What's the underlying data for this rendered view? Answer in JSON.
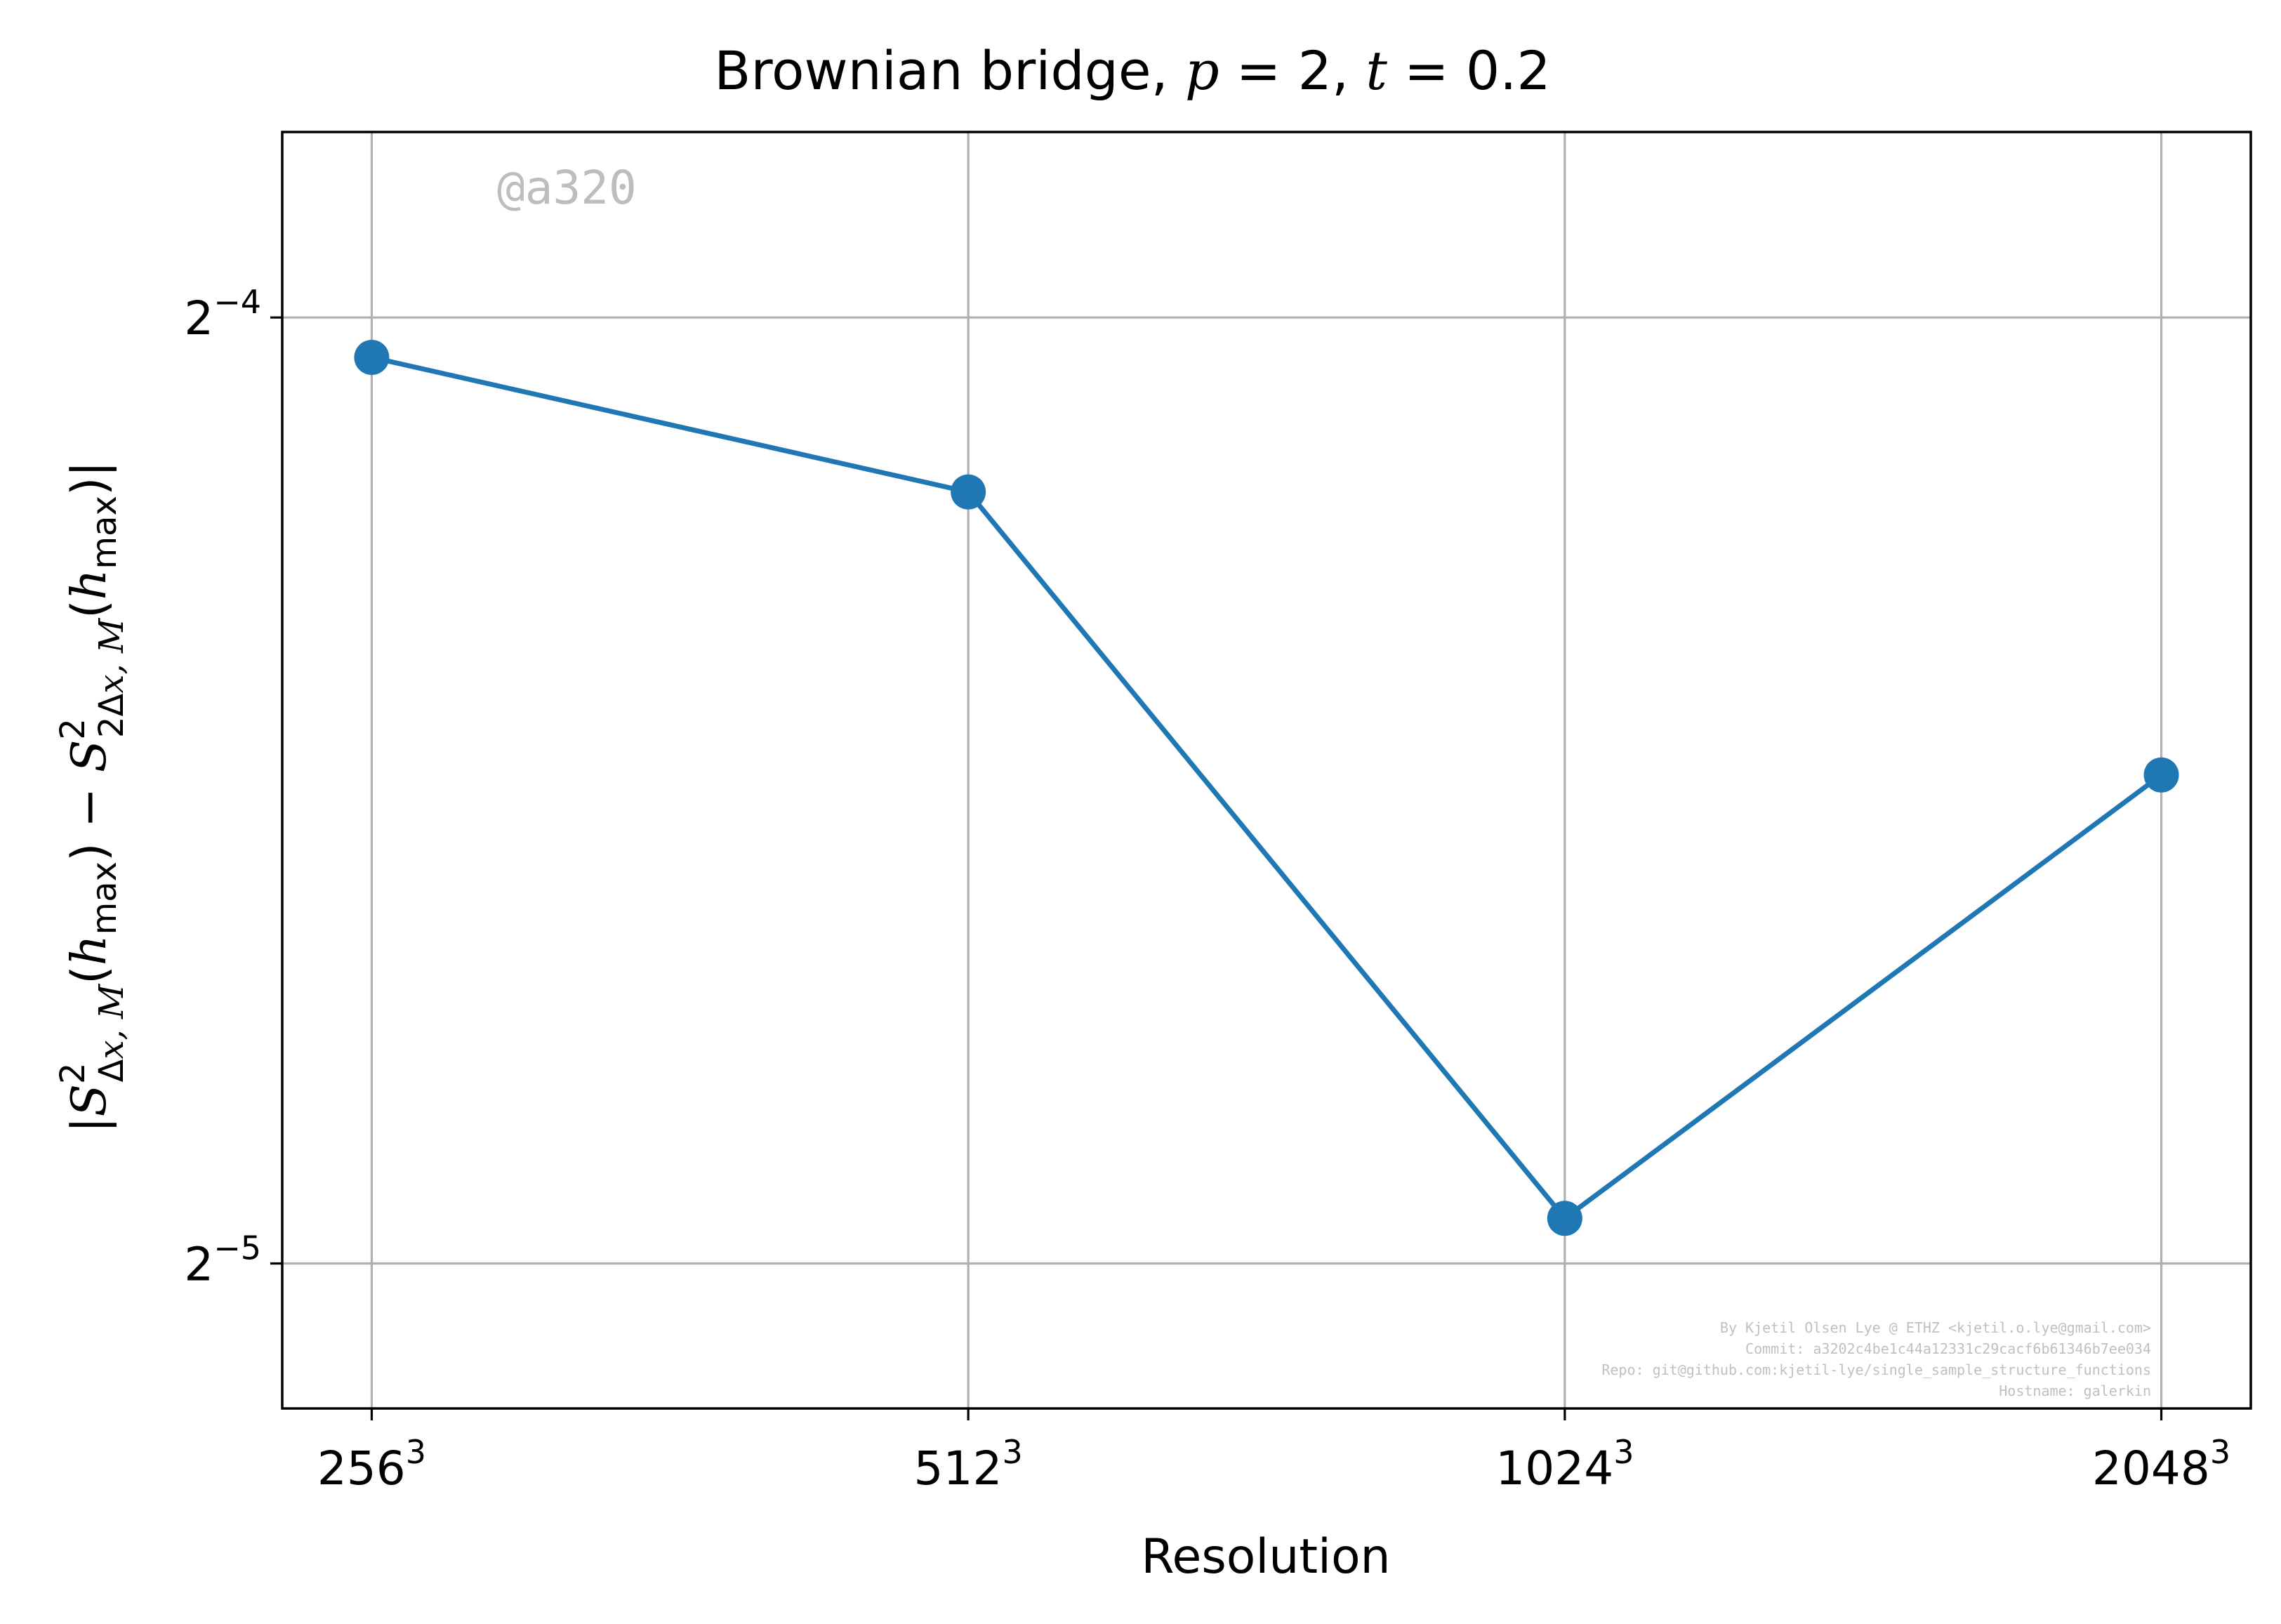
{
  "chart_data": {
    "type": "line",
    "title": {
      "prefix": "Brownian bridge, ",
      "p_var": "p",
      "p_eq": " = 2, ",
      "t_var": "t",
      "t_eq": " = 0.2"
    },
    "xlabel": "Resolution",
    "ylabel": "|S²Δx,M(hmax) − S²2Δx,M(hmax)|",
    "categories": [
      "256³",
      "512³",
      "1024³",
      "2048³"
    ],
    "x_tick_bases": [
      "256",
      "512",
      "1024",
      "2048"
    ],
    "x_tick_exp": "3",
    "y_scale": "log2",
    "yticks": [
      {
        "value": 0.0625,
        "base": "2",
        "exp": "−4"
      },
      {
        "value": 0.03125,
        "base": "2",
        "exp": "−5"
      }
    ],
    "ylim": [
      0.0281,
      0.0716
    ],
    "series": [
      {
        "values": [
          0.0607,
          0.055,
          0.0323,
          0.0447
        ],
        "color": "#1f77b4"
      }
    ],
    "grid": true,
    "watermark": "@a320",
    "footer_lines": [
      "By Kjetil Olsen Lye @ ETHZ <kjetil.o.lye@gmail.com>",
      "Commit: a3202c4be1c44a12331c29cacf6b61346b7ee034",
      "Repo: git@github.com:kjetil-lye/single_sample_structure_functions",
      "Hostname: galerkin"
    ]
  }
}
